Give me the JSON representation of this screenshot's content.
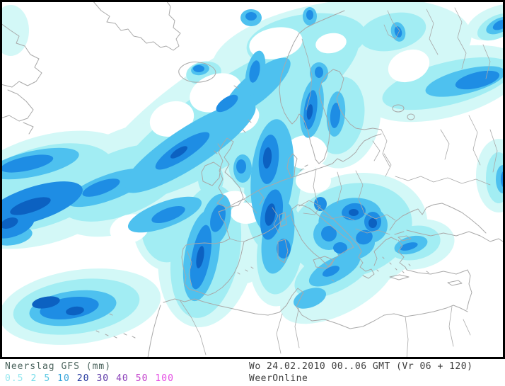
{
  "map": {
    "title": "Neerslag GFS (mm)",
    "timestamp": "Wo 24.02.2010 00..06 GMT (Vr 06 + 120)",
    "brand": "WeerOnline",
    "title_color": "#4A625C",
    "timestamp_color": "#3C3C3C",
    "legend": {
      "levels": [
        {
          "label": "0.5",
          "color": "#96E7EF"
        },
        {
          "label": "2",
          "color": "#76DCEA"
        },
        {
          "label": "5",
          "color": "#5BC8E2"
        },
        {
          "label": "10",
          "color": "#35A3DA"
        },
        {
          "label": "20",
          "color": "#24389E"
        },
        {
          "label": "30",
          "color": "#5A36A6"
        },
        {
          "label": "40",
          "color": "#8C42BA"
        },
        {
          "label": "50",
          "color": "#C242CB"
        },
        {
          "label": "100",
          "color": "#E44BE3"
        }
      ]
    },
    "fill_colors": {
      "level_05": "#D3F8F7",
      "level_2": "#A2EDF3",
      "level_5": "#4EC1EF",
      "level_10": "#1E8DE4",
      "level_20": "#0C61C1"
    },
    "coastline_color": "#A9A9A9",
    "frame_color": "#000000"
  }
}
